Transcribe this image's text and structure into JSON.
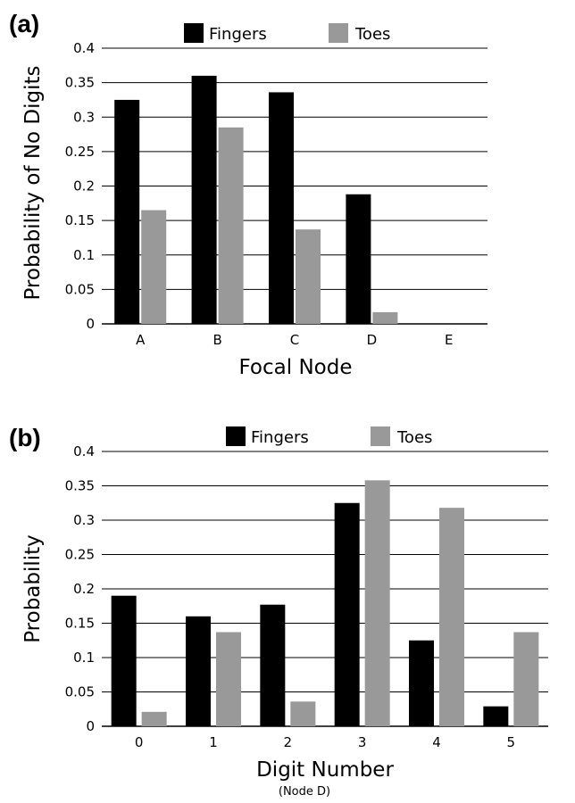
{
  "colors": {
    "fingers": "#000000",
    "toes": "#999999",
    "grid": "#000000"
  },
  "chart_data": [
    {
      "panel": "(a)",
      "type": "bar",
      "categories": [
        "A",
        "B",
        "C",
        "D",
        "E"
      ],
      "series": [
        {
          "name": "Fingers",
          "values": [
            0.325,
            0.36,
            0.336,
            0.188,
            0
          ]
        },
        {
          "name": "Toes",
          "values": [
            0.165,
            0.285,
            0.137,
            0.017,
            0
          ]
        }
      ],
      "yticks": [
        "0",
        "0.05",
        "0.1",
        "0.15",
        "0.2",
        "0.25",
        "0.3",
        "0.35",
        "0.4"
      ],
      "ylim": [
        0,
        0.4
      ],
      "xlabel": "Focal Node",
      "ylabel": "Probability of No Digits",
      "grid": true,
      "legend": "top"
    },
    {
      "panel": "(b)",
      "type": "bar",
      "categories": [
        "0",
        "1",
        "2",
        "3",
        "4",
        "5"
      ],
      "series": [
        {
          "name": "Fingers",
          "values": [
            0.19,
            0.16,
            0.177,
            0.325,
            0.125,
            0.029
          ]
        },
        {
          "name": "Toes",
          "values": [
            0.021,
            0.137,
            0.036,
            0.358,
            0.318,
            0.137
          ]
        }
      ],
      "yticks": [
        "0",
        "0.05",
        "0.1",
        "0.15",
        "0.2",
        "0.25",
        "0.3",
        "0.35",
        "0.4"
      ],
      "ylim": [
        0,
        0.4
      ],
      "xlabel": "Digit Number",
      "note": "(Node D)",
      "ylabel": "Probability",
      "grid": true,
      "legend": "top"
    }
  ]
}
